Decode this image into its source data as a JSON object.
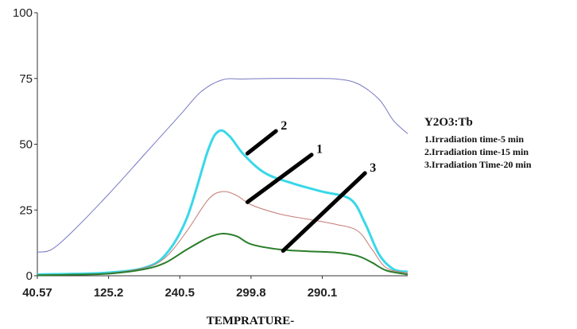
{
  "chart_data": {
    "type": "line",
    "xlabel": "TEMPRATURE-",
    "ylabel": "",
    "ylim": [
      0,
      100
    ],
    "y_ticks": [
      {
        "label": "100",
        "value": 100
      },
      {
        "label": "75",
        "value": 75
      },
      {
        "label": "50",
        "value": 50
      },
      {
        "label": "25",
        "value": 25
      },
      {
        "label": "0",
        "value": 0
      }
    ],
    "x_ticks": [
      {
        "label": "40.57",
        "value": 0
      },
      {
        "label": "125.2",
        "value": 1
      },
      {
        "label": "240.5",
        "value": 2
      },
      {
        "label": "299.8",
        "value": 3
      },
      {
        "label": "290.1",
        "value": 4
      }
    ],
    "xlim": [
      0,
      5.2
    ],
    "grid": false,
    "series": [
      {
        "color": "#7777c4",
        "x": [
          0,
          0.2,
          0.5,
          1.0,
          1.5,
          2.0,
          2.3,
          2.6,
          2.9,
          3.3,
          3.8,
          4.2,
          4.5,
          4.8,
          5.0,
          5.2
        ],
        "y": [
          9,
          10,
          17,
          31,
          46,
          61,
          70,
          74.5,
          74.8,
          75,
          75,
          74.8,
          73,
          67,
          59,
          54
        ]
      },
      {
        "color": "#38d8e8",
        "x": [
          0,
          0.5,
          1.0,
          1.5,
          1.8,
          2.1,
          2.4,
          2.55,
          2.7,
          2.9,
          3.2,
          3.6,
          4.0,
          4.4,
          4.6,
          4.8,
          5.0,
          5.2
        ],
        "y": [
          0.5,
          0.7,
          1.2,
          3,
          8,
          22,
          48,
          55,
          53,
          46,
          39,
          35,
          32,
          29,
          20,
          8,
          2.5,
          1.5
        ]
      },
      {
        "color": "#c27a72",
        "x": [
          0,
          0.5,
          1.0,
          1.5,
          1.8,
          2.1,
          2.4,
          2.6,
          2.8,
          3.0,
          3.4,
          3.8,
          4.2,
          4.5,
          4.7,
          4.9,
          5.2
        ],
        "y": [
          0.3,
          0.5,
          1,
          3,
          7,
          17,
          29,
          32,
          30.5,
          27,
          23.5,
          21.5,
          19.5,
          17,
          10,
          3,
          1
        ]
      },
      {
        "color": "#2a7d2a",
        "x": [
          0,
          0.5,
          1.0,
          1.5,
          1.8,
          2.1,
          2.4,
          2.6,
          2.8,
          3.0,
          3.4,
          3.8,
          4.2,
          4.5,
          4.7,
          4.9,
          5.2
        ],
        "y": [
          0.2,
          0.4,
          0.8,
          2.5,
          5,
          10,
          14.5,
          16,
          15,
          12,
          10,
          9.3,
          8.8,
          7.5,
          5,
          2,
          0.5
        ]
      }
    ],
    "callouts": [
      {
        "label": "2",
        "x1": 2.95,
        "y1": 46.5,
        "x2": 3.35,
        "y2": 55
      },
      {
        "label": "1",
        "x1": 2.95,
        "y1": 28,
        "x2": 3.85,
        "y2": 46
      },
      {
        "label": "3",
        "x1": 3.45,
        "y1": 9.5,
        "x2": 4.6,
        "y2": 39
      }
    ]
  },
  "legend": {
    "title": "Y2O3:Tb",
    "items": [
      "1.Irradiation time-5 min",
      "2.Irradiation time-15 min",
      "3.Irradiation Time-20 min"
    ]
  }
}
